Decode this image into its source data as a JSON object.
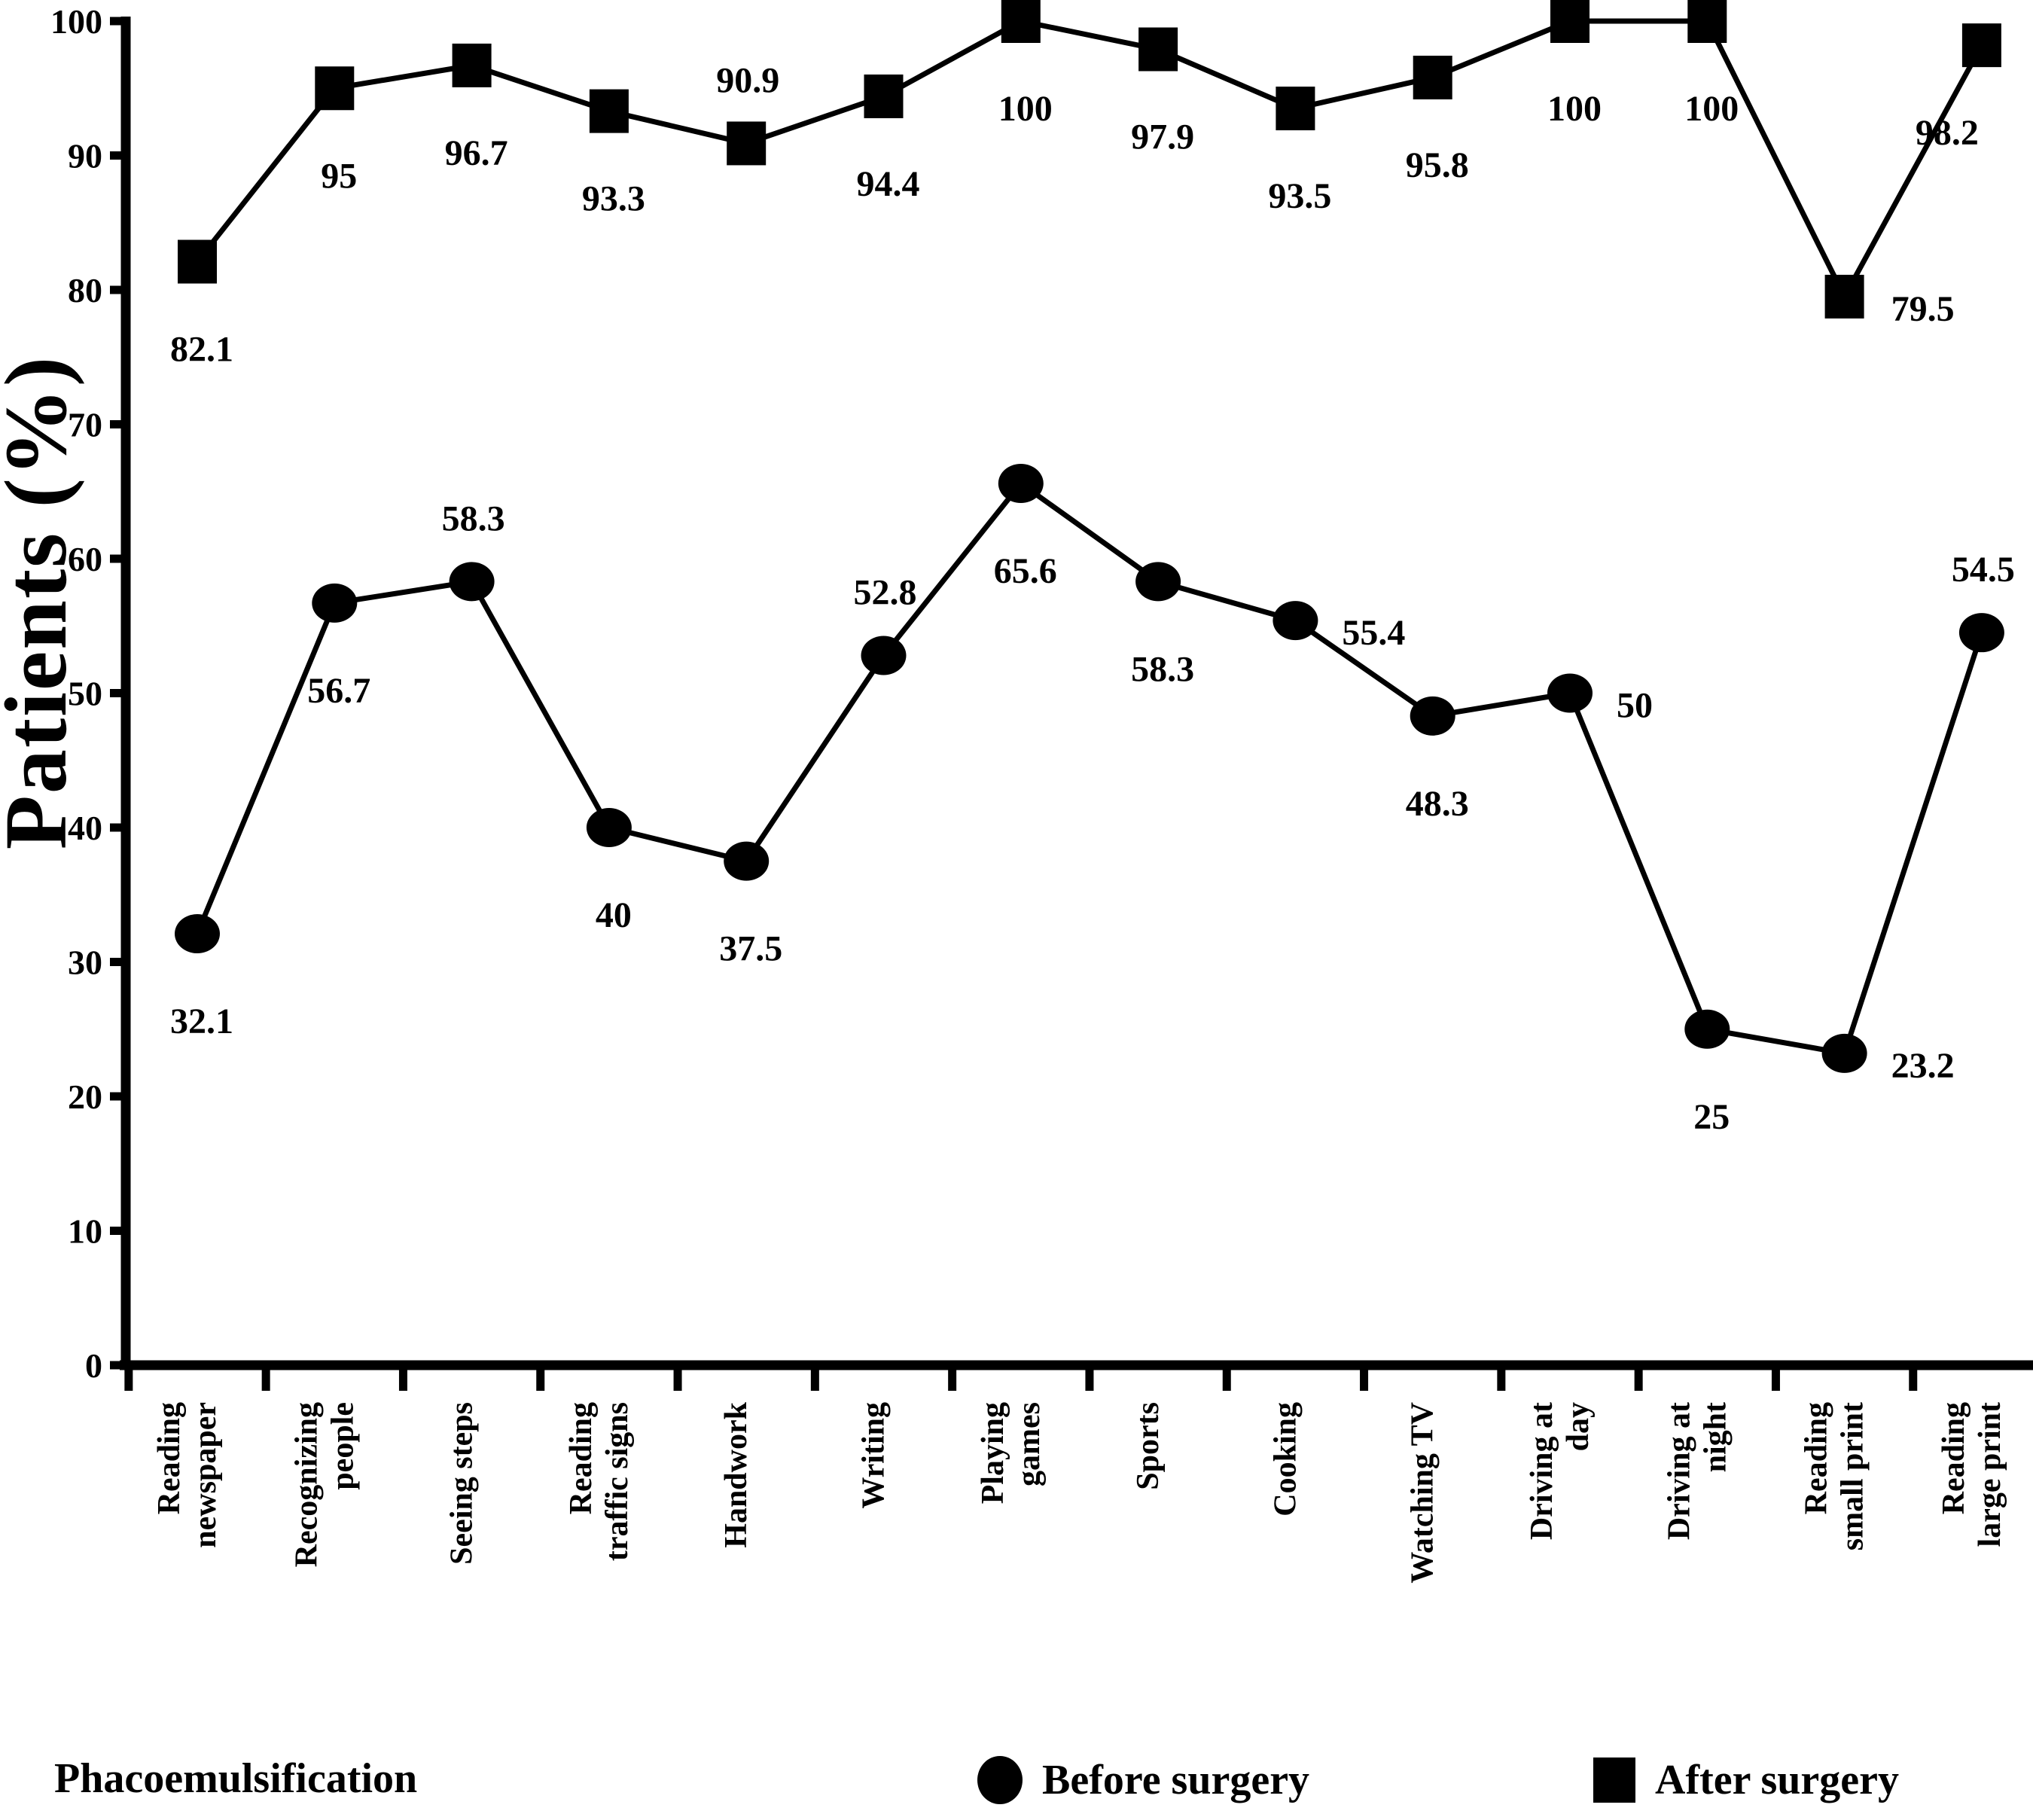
{
  "figure": {
    "title": "Phacoemulsification",
    "background": "#ffffff",
    "ink": "#000000"
  },
  "legend": {
    "items": [
      {
        "marker": "circle-icon",
        "label": "Before surgery"
      },
      {
        "marker": "square-icon",
        "label": "After surgery"
      }
    ]
  },
  "chart_data": {
    "type": "line",
    "title": "Phacoemulsification",
    "xlabel": "",
    "ylabel": "Patients (%)",
    "ylim": [
      0,
      100
    ],
    "yticks": [
      0,
      10,
      20,
      30,
      40,
      50,
      60,
      70,
      80,
      90,
      100
    ],
    "grid": false,
    "legend_position": "bottom",
    "categories": [
      "Reading\nnewspaper",
      "Recognizing\npeople",
      "Seeing steps",
      "Reading\ntraffic signs",
      "Handwork",
      "Writing",
      "Playing\ngames",
      "Sports",
      "Cooking",
      "Watching TV",
      "Driving at\nday",
      "Driving at\nnight",
      "Reading\nsmall print",
      "Reading\nlarge print"
    ],
    "series": [
      {
        "name": "Before surgery",
        "marker": "circle",
        "color": "#000000",
        "values": [
          32.1,
          56.7,
          58.3,
          40,
          37.5,
          52.8,
          65.6,
          58.3,
          55.4,
          48.3,
          50,
          25,
          23.2,
          54.5
        ],
        "label_positions": [
          "below",
          "below",
          "above",
          "below",
          "below",
          "above",
          "below",
          "below",
          "right",
          "below",
          "right",
          "below",
          "right",
          "above"
        ]
      },
      {
        "name": "After surgery",
        "marker": "square",
        "color": "#000000",
        "values": [
          82.1,
          95,
          96.7,
          93.3,
          90.9,
          94.4,
          100,
          97.9,
          93.5,
          95.8,
          100,
          100,
          79.5,
          98.2
        ],
        "label_positions": [
          "below",
          "below",
          "below",
          "below",
          "above",
          "below",
          "below",
          "below",
          "below",
          "below",
          "below",
          "below",
          "right",
          "below-left"
        ]
      }
    ]
  }
}
